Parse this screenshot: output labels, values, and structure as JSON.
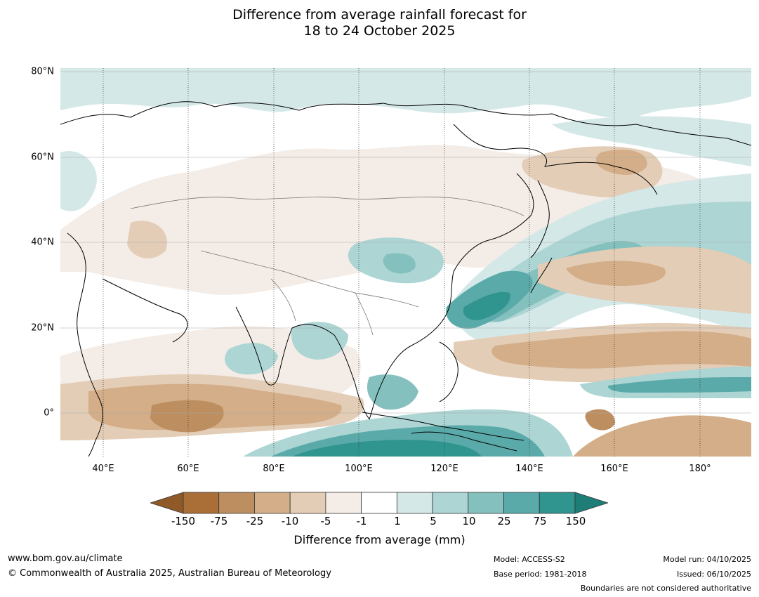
{
  "title_line1": "Difference from average rainfall forecast for",
  "title_line2": "18 to 24 October 2025",
  "lat_labels": [
    "80°N",
    "60°N",
    "40°N",
    "20°N",
    "0°"
  ],
  "lon_labels": [
    "40°E",
    "60°E",
    "80°E",
    "100°E",
    "120°E",
    "140°E",
    "160°E",
    "180°"
  ],
  "colorbar": {
    "ticks": [
      "-150",
      "-75",
      "-25",
      "-10",
      "-5",
      "-1",
      "1",
      "5",
      "10",
      "25",
      "75",
      "150"
    ],
    "colors": [
      "#a96f37",
      "#bd8f60",
      "#d3ae88",
      "#e3cdb6",
      "#f4ece6",
      "#ffffff",
      "#d4e8e7",
      "#acd5d4",
      "#84c0be",
      "#5aaaa9",
      "#30958f",
      "#1f7d77"
    ],
    "low_extend_color": "#8f5a28",
    "label": "Difference from average (mm)"
  },
  "footer": {
    "url": "www.bom.gov.au/climate",
    "copyright": "© Commonwealth of Australia 2025, Australian Bureau of Meteorology",
    "model": "Model: ACCESS-S2",
    "base_period": "Base period: 1981-2018",
    "model_run": "Model run: 04/10/2025",
    "issued": "Issued: 06/10/2025",
    "disclaimer": "Boundaries are not considered authoritative"
  }
}
